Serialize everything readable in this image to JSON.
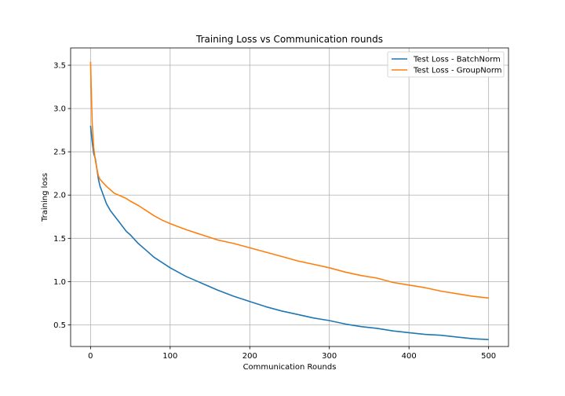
{
  "chart_data": {
    "type": "line",
    "title": "Training Loss vs Communication rounds",
    "xlabel": "Communication Rounds",
    "ylabel": "Training loss",
    "xlim": [
      -25,
      525
    ],
    "ylim": [
      0.25,
      3.7
    ],
    "xticks": [
      0,
      100,
      200,
      300,
      400,
      500
    ],
    "yticks": [
      0.5,
      1.0,
      1.5,
      2.0,
      2.5,
      3.0,
      3.5
    ],
    "xtick_labels": [
      "0",
      "100",
      "200",
      "300",
      "400",
      "500"
    ],
    "ytick_labels": [
      "0.5",
      "1.0",
      "1.5",
      "2.0",
      "2.5",
      "3.0",
      "3.5"
    ],
    "grid": true,
    "legend_position": "top-right",
    "series": [
      {
        "name": "Test Loss - BatchNorm",
        "color": "#1f77b4",
        "x": [
          0,
          2,
          4,
          6,
          8,
          10,
          12,
          14,
          16,
          20,
          25,
          30,
          35,
          40,
          45,
          50,
          60,
          70,
          80,
          90,
          100,
          120,
          140,
          160,
          180,
          200,
          220,
          240,
          260,
          280,
          300,
          320,
          340,
          360,
          380,
          400,
          420,
          440,
          460,
          480,
          500
        ],
        "y": [
          2.8,
          2.62,
          2.48,
          2.42,
          2.3,
          2.18,
          2.1,
          2.05,
          2.0,
          1.9,
          1.82,
          1.76,
          1.7,
          1.64,
          1.58,
          1.54,
          1.44,
          1.36,
          1.28,
          1.22,
          1.16,
          1.06,
          0.98,
          0.9,
          0.83,
          0.77,
          0.71,
          0.66,
          0.62,
          0.58,
          0.55,
          0.51,
          0.48,
          0.46,
          0.43,
          0.41,
          0.39,
          0.38,
          0.36,
          0.34,
          0.33
        ]
      },
      {
        "name": "Test Loss - GroupNorm",
        "color": "#ff7f0e",
        "x": [
          0,
          2,
          4,
          6,
          8,
          10,
          12,
          14,
          16,
          20,
          25,
          30,
          35,
          40,
          45,
          50,
          60,
          70,
          80,
          90,
          100,
          120,
          140,
          160,
          180,
          200,
          220,
          240,
          260,
          280,
          300,
          320,
          340,
          360,
          380,
          400,
          420,
          440,
          460,
          480,
          500
        ],
        "y": [
          3.54,
          2.85,
          2.55,
          2.4,
          2.3,
          2.22,
          2.18,
          2.16,
          2.14,
          2.1,
          2.06,
          2.02,
          2.0,
          1.98,
          1.96,
          1.93,
          1.88,
          1.82,
          1.76,
          1.71,
          1.67,
          1.6,
          1.54,
          1.48,
          1.44,
          1.39,
          1.34,
          1.29,
          1.24,
          1.2,
          1.16,
          1.11,
          1.07,
          1.04,
          0.99,
          0.96,
          0.93,
          0.89,
          0.86,
          0.83,
          0.81
        ]
      }
    ]
  }
}
